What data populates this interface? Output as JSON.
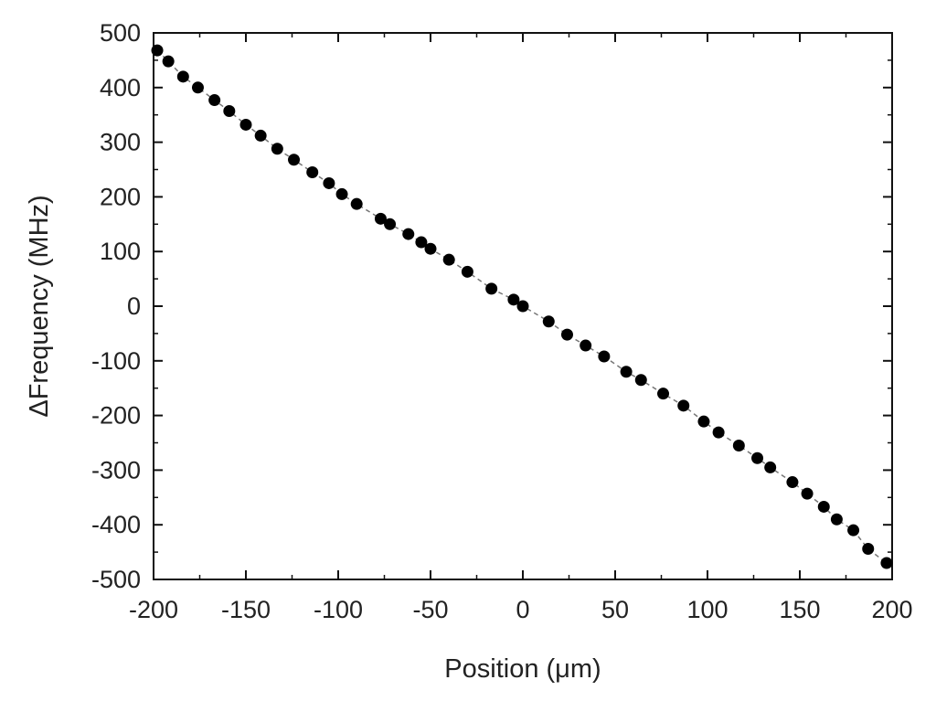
{
  "chart_data": {
    "type": "scatter",
    "title": "",
    "xlabel": "Position (μm)",
    "ylabel": "ΔFrequency (MHz)",
    "xlim": [
      -200,
      200
    ],
    "ylim": [
      -500,
      500
    ],
    "x_ticks": [
      -200,
      -150,
      -100,
      -50,
      0,
      50,
      100,
      150,
      200
    ],
    "y_ticks": [
      500,
      400,
      300,
      200,
      100,
      0,
      -100,
      -200,
      -300,
      -400,
      -500
    ],
    "x_tick_labels": [
      "-200",
      "-150",
      "-100",
      "-50",
      "0",
      "50",
      "100",
      "150",
      "200"
    ],
    "y_tick_labels": [
      "500",
      "400",
      "300",
      "200",
      "100",
      "0",
      "-100",
      "-200",
      "-300",
      "-400",
      "-500"
    ],
    "grid": false,
    "marker_color": "#000000",
    "line_color": "#777777",
    "line_style": "dashed",
    "series": [
      {
        "x": [
          -198,
          -192,
          -184,
          -176,
          -167,
          -159,
          -150,
          -142,
          -133,
          -124,
          -114,
          -105,
          -98,
          -90,
          -77,
          -72,
          -62,
          -55,
          -50,
          -40,
          -30,
          -17,
          -5,
          0,
          14,
          24,
          34,
          44,
          56,
          64,
          76,
          87,
          98,
          106,
          117,
          127,
          134,
          146,
          154,
          163,
          170,
          179,
          187,
          197
        ],
        "y": [
          468,
          448,
          420,
          400,
          377,
          357,
          332,
          312,
          288,
          268,
          245,
          225,
          205,
          187,
          160,
          150,
          132,
          117,
          105,
          85,
          63,
          32,
          12,
          0,
          -28,
          -52,
          -72,
          -92,
          -120,
          -135,
          -160,
          -182,
          -211,
          -231,
          -255,
          -278,
          -295,
          -322,
          -343,
          -367,
          -390,
          -410,
          -444,
          -470
        ]
      }
    ]
  }
}
